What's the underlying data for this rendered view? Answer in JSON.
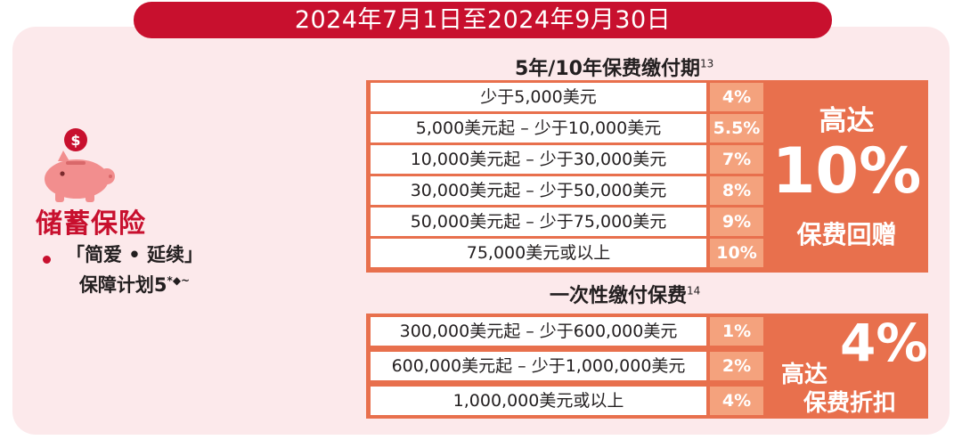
{
  "period": "2024年7月1日至2024年9月30日",
  "product": {
    "title": "储蓄保险",
    "plan_line1": "「简爱 • 延续」",
    "plan_line2": "保障计划5",
    "plan_note": "*◆~"
  },
  "installment": {
    "title": "5年/10年保费缴付期",
    "note": "13",
    "tiers": [
      {
        "range": "少于5,000美元",
        "rate": "4%"
      },
      {
        "range": "5,000美元起 – 少于10,000美元",
        "rate": "5.5%"
      },
      {
        "range": "10,000美元起 – 少于30,000美元",
        "rate": "7%"
      },
      {
        "range": "30,000美元起 – 少于50,000美元",
        "rate": "8%"
      },
      {
        "range": "50,000美元起 – 少于75,000美元",
        "rate": "9%"
      },
      {
        "range": "75,000美元或以上",
        "rate": "10%"
      }
    ],
    "highlight_top": "高达",
    "highlight_value": "10%",
    "highlight_bottom": "保费回赠"
  },
  "single": {
    "title": "一次性缴付保费",
    "note": "14",
    "tiers": [
      {
        "range": "300,000美元起 – 少于600,000美元",
        "rate": "1%"
      },
      {
        "range": "600,000美元起 – 少于1,000,000美元",
        "rate": "2%"
      },
      {
        "range": "1,000,000美元或以上",
        "rate": "4%"
      }
    ],
    "highlight_top": "高达",
    "highlight_value": "4%",
    "highlight_bottom": "保费折扣"
  },
  "colors": {
    "brand_red": "#c8102e",
    "panel_pink": "#fce9eb",
    "orange": "#e8704d",
    "light_orange": "#f4a27d"
  },
  "icons": {
    "piggy": "piggy-bank-icon",
    "coin": "dollar-coin-icon"
  }
}
